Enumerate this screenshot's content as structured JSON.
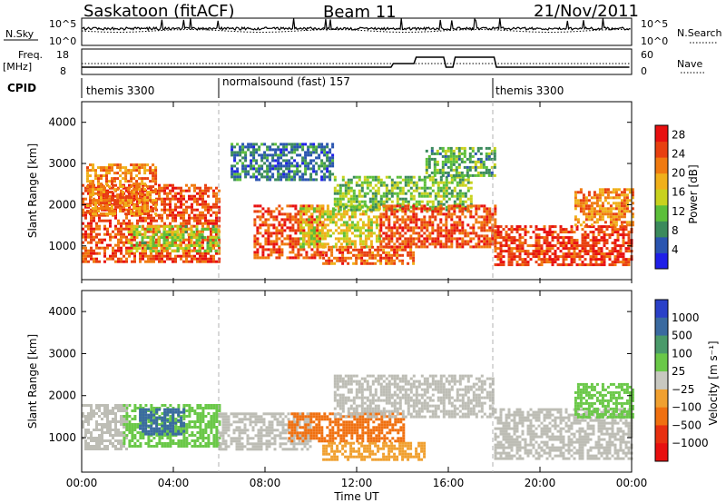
{
  "header": {
    "station": "Saskatoon (fitACF)",
    "beam": "Beam 11",
    "date": "21/Nov/2011"
  },
  "left_labels": {
    "nsky": "N.Sky",
    "freq_line1": "Freq.",
    "freq_line2": "[MHz]",
    "cpid": "CPID"
  },
  "right_labels": {
    "nsearch": "N.Search",
    "nave": "Nave"
  },
  "small_panels": {
    "noise": {
      "y_left_ticks": [
        "10^5",
        "10^0"
      ],
      "y_right_ticks": [
        "10^5",
        "10^0"
      ]
    },
    "freq": {
      "y_left_ticks": [
        "18",
        "8"
      ],
      "y_right_ticks": [
        "60",
        "0"
      ]
    }
  },
  "cpid_bar": {
    "segments": [
      {
        "label": "themis 3300",
        "start_hour": 0
      },
      {
        "label": "normalsound (fast) 157",
        "start_hour": 6
      },
      {
        "label": "themis 3300",
        "start_hour": 18
      }
    ]
  },
  "colors": {
    "power_scale": [
      "#1f1fe8",
      "#2a55b0",
      "#3b8a5c",
      "#5cbf3a",
      "#c8d21e",
      "#f0b01a",
      "#f07a10",
      "#e84010",
      "#e81010"
    ],
    "velocity_scale": [
      "#2a40c8",
      "#3a6aa0",
      "#4a9a6a",
      "#6ac848",
      "#c8c8c0",
      "#f0a030",
      "#f07010",
      "#e83010",
      "#e81010"
    ],
    "ground_scatter": "#bdbdb5"
  },
  "chart_data": [
    {
      "type": "heatmap",
      "name": "power",
      "xlabel": "",
      "ylabel": "Slant Range [km]",
      "x_unit": "hours UT",
      "xlim": [
        0,
        24
      ],
      "ylim": [
        180,
        4500
      ],
      "yticks": [
        1000,
        2000,
        3000,
        4000
      ],
      "colorbar": {
        "label": "Power [dB]",
        "ticks": [
          4,
          8,
          12,
          16,
          20,
          24,
          28
        ],
        "range": [
          0,
          30
        ]
      },
      "scatter_regions": [
        {
          "t0": 0.0,
          "t1": 6.0,
          "r0": 600,
          "r1": 2500,
          "level": 26
        },
        {
          "t0": 0.2,
          "t1": 3.2,
          "r0": 1800,
          "r1": 3000,
          "level": 22
        },
        {
          "t0": 2.0,
          "t1": 6.0,
          "r0": 900,
          "r1": 1500,
          "level": 14
        },
        {
          "t0": 6.5,
          "t1": 11.0,
          "r0": 2600,
          "r1": 3500,
          "level": 6
        },
        {
          "t0": 7.5,
          "t1": 10.5,
          "r0": 700,
          "r1": 2000,
          "level": 26
        },
        {
          "t0": 9.5,
          "t1": 13.0,
          "r0": 1000,
          "r1": 2000,
          "level": 16
        },
        {
          "t0": 10.5,
          "t1": 14.5,
          "r0": 600,
          "r1": 1000,
          "level": 24
        },
        {
          "t0": 11.0,
          "t1": 17.0,
          "r0": 1900,
          "r1": 2700,
          "level": 12
        },
        {
          "t0": 13.0,
          "t1": 18.0,
          "r0": 1000,
          "r1": 2000,
          "level": 26
        },
        {
          "t0": 15.0,
          "t1": 18.0,
          "r0": 2700,
          "r1": 3400,
          "level": 10
        },
        {
          "t0": 18.0,
          "t1": 24.0,
          "r0": 550,
          "r1": 1500,
          "level": 27
        },
        {
          "t0": 21.5,
          "t1": 24.0,
          "r0": 1500,
          "r1": 2400,
          "level": 22
        }
      ]
    },
    {
      "type": "heatmap",
      "name": "velocity",
      "xlabel": "Time UT",
      "ylabel": "Slant Range [km]",
      "x_unit": "hours UT",
      "xlim": [
        0,
        24
      ],
      "ylim": [
        180,
        4500
      ],
      "xticks": [
        "00:00",
        "04:00",
        "08:00",
        "12:00",
        "16:00",
        "20:00",
        "00:00"
      ],
      "yticks": [
        1000,
        2000,
        3000,
        4000
      ],
      "colorbar": {
        "label": "Velocity [m s⁻¹]",
        "ticks": [
          "1000",
          "500",
          "100",
          "25",
          "−25",
          "−100",
          "−500",
          "−1000"
        ]
      },
      "scatter_regions": [
        {
          "t0": 0.0,
          "t1": 2.0,
          "r0": 700,
          "r1": 1800,
          "level": "ground"
        },
        {
          "t0": 1.8,
          "t1": 6.0,
          "r0": 800,
          "r1": 1800,
          "level": 100
        },
        {
          "t0": 2.5,
          "t1": 4.5,
          "r0": 1100,
          "r1": 1700,
          "level": 500
        },
        {
          "t0": 6.0,
          "t1": 10.0,
          "r0": 700,
          "r1": 1600,
          "level": "ground"
        },
        {
          "t0": 9.0,
          "t1": 14.0,
          "r0": 900,
          "r1": 1600,
          "level": -100
        },
        {
          "t0": 10.5,
          "t1": 15.0,
          "r0": 500,
          "r1": 900,
          "level": -25
        },
        {
          "t0": 11.0,
          "t1": 18.0,
          "r0": 1500,
          "r1": 2500,
          "level": "ground"
        },
        {
          "t0": 18.0,
          "t1": 24.0,
          "r0": 500,
          "r1": 1700,
          "level": "ground"
        },
        {
          "t0": 21.5,
          "t1": 24.0,
          "r0": 1500,
          "r1": 2300,
          "level": 100
        }
      ]
    }
  ]
}
